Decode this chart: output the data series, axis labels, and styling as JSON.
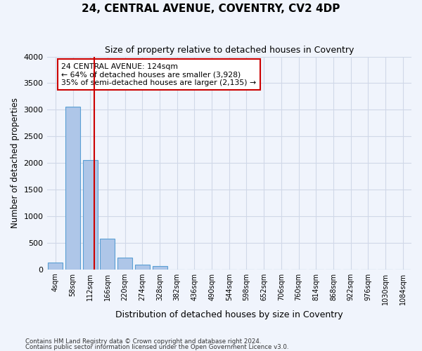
{
  "title": "24, CENTRAL AVENUE, COVENTRY, CV2 4DP",
  "subtitle": "Size of property relative to detached houses in Coventry",
  "xlabel": "Distribution of detached houses by size in Coventry",
  "ylabel": "Number of detached properties",
  "footnote1": "Contains HM Land Registry data © Crown copyright and database right 2024.",
  "footnote2": "Contains public sector information licensed under the Open Government Licence v3.0.",
  "bin_labels": [
    "4sqm",
    "58sqm",
    "112sqm",
    "166sqm",
    "220sqm",
    "274sqm",
    "328sqm",
    "382sqm",
    "436sqm",
    "490sqm",
    "544sqm",
    "598sqm",
    "652sqm",
    "706sqm",
    "760sqm",
    "814sqm",
    "868sqm",
    "922sqm",
    "976sqm",
    "1030sqm",
    "1084sqm"
  ],
  "bar_values": [
    130,
    3060,
    2060,
    570,
    215,
    80,
    55,
    0,
    0,
    0,
    0,
    0,
    0,
    0,
    0,
    0,
    0,
    0,
    0,
    0,
    0
  ],
  "bar_color": "#aec6e8",
  "bar_edge_color": "#5a9fd4",
  "grid_color": "#d0d8e8",
  "background_color": "#f0f4fc",
  "vline_color": "#cc0000",
  "annotation_text": "24 CENTRAL AVENUE: 124sqm\n← 64% of detached houses are smaller (3,928)\n35% of semi-detached houses are larger (2,135) →",
  "annotation_box_color": "#ffffff",
  "annotation_box_edge": "#cc0000",
  "ylim": [
    0,
    4000
  ],
  "yticks": [
    0,
    500,
    1000,
    1500,
    2000,
    2500,
    3000,
    3500,
    4000
  ]
}
